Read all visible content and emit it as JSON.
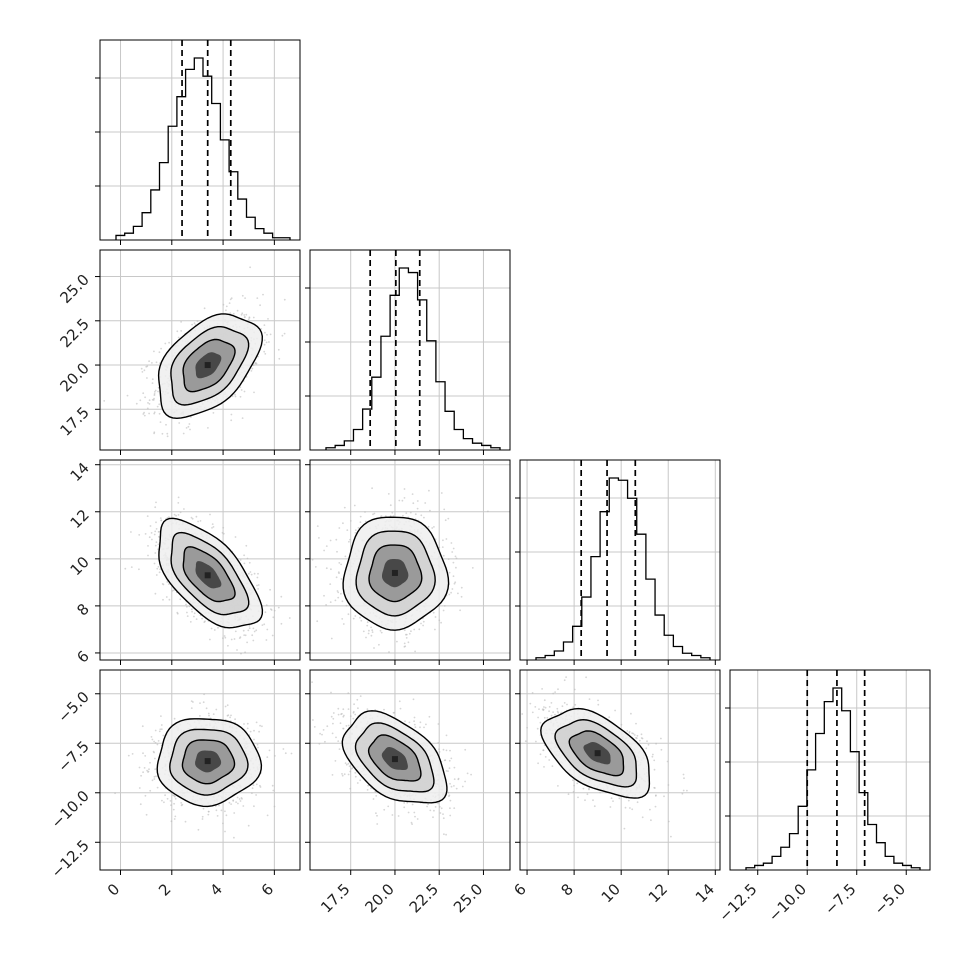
{
  "chart_data": {
    "type": "corner",
    "n_params": 4,
    "colors": {
      "line": "#000000",
      "grid": "#c8c8c8",
      "scatter": "#bbbbbb",
      "fill_dark": "#222222"
    },
    "quantile_lines": "dashed",
    "grid": true,
    "params": [
      {
        "range": [
          -0.8,
          7.0
        ],
        "ticks": [
          0,
          2,
          4,
          6
        ],
        "tick_labels": [
          "0",
          "2",
          "4",
          "6"
        ],
        "quantiles": [
          2.4,
          3.4,
          4.3
        ],
        "hist": [
          2,
          3,
          6,
          12,
          22,
          34,
          50,
          63,
          75,
          80,
          72,
          60,
          44,
          30,
          18,
          10,
          5,
          3,
          1,
          1
        ]
      },
      {
        "range": [
          15.2,
          26.5
        ],
        "ticks": [
          17.5,
          20.0,
          22.5,
          25.0
        ],
        "tick_labels": [
          "17.5",
          "20.0",
          "22.5",
          "25.0"
        ],
        "quantiles": [
          18.6,
          20.05,
          21.4
        ],
        "hist": [
          1,
          2,
          4,
          9,
          18,
          32,
          50,
          68,
          80,
          78,
          66,
          48,
          30,
          17,
          9,
          5,
          3,
          2,
          1
        ]
      },
      {
        "range": [
          5.7,
          14.2
        ],
        "ticks": [
          6,
          8,
          10,
          12,
          14
        ],
        "tick_labels": [
          "6",
          "8",
          "10",
          "12",
          "14"
        ],
        "quantiles": [
          8.3,
          9.4,
          10.6
        ],
        "hist": [
          1,
          2,
          4,
          8,
          15,
          28,
          46,
          66,
          81,
          80,
          72,
          56,
          36,
          20,
          11,
          6,
          3,
          2,
          1
        ]
      },
      {
        "range": [
          -13.9,
          -3.8
        ],
        "ticks": [
          -12.5,
          -10.0,
          -7.5,
          -5.0
        ],
        "tick_labels": [
          "−12.5",
          "−10.0",
          "−7.5",
          "−5.0"
        ],
        "quantiles": [
          -10.0,
          -8.5,
          -7.1
        ],
        "hist": [
          1,
          2,
          3,
          6,
          10,
          16,
          28,
          44,
          60,
          74,
          80,
          70,
          52,
          34,
          20,
          12,
          6,
          3,
          2,
          1
        ]
      }
    ],
    "pairs": [
      {
        "row": 1,
        "col": 0,
        "center": [
          3.4,
          20.0
        ],
        "sigma": [
          1.0,
          1.45
        ],
        "rho": 0.45
      },
      {
        "row": 2,
        "col": 0,
        "center": [
          3.4,
          9.3
        ],
        "sigma": [
          1.0,
          1.15
        ],
        "rho": -0.6
      },
      {
        "row": 2,
        "col": 1,
        "center": [
          20.0,
          9.4
        ],
        "sigma": [
          1.45,
          1.2
        ],
        "rho": 0.0
      },
      {
        "row": 3,
        "col": 0,
        "center": [
          3.4,
          -8.4
        ],
        "sigma": [
          1.0,
          1.1
        ],
        "rho": 0.0
      },
      {
        "row": 3,
        "col": 1,
        "center": [
          20.0,
          -8.3
        ],
        "sigma": [
          1.45,
          1.15
        ],
        "rho": -0.45
      },
      {
        "row": 3,
        "col": 2,
        "center": [
          9.0,
          -8.0
        ],
        "sigma": [
          1.15,
          1.1
        ],
        "rho": -0.5
      }
    ],
    "contour_levels": [
      0.5,
      1.0,
      1.5,
      2.0
    ]
  }
}
